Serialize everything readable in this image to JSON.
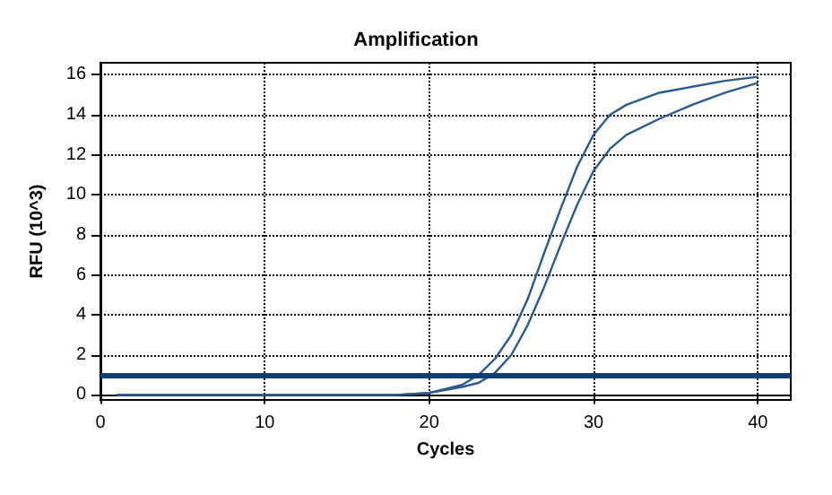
{
  "chart_data": {
    "type": "line",
    "title": "Amplification",
    "xlabel": "Cycles",
    "ylabel": "RFU (10^3)",
    "x": [
      1,
      5,
      10,
      15,
      18,
      20,
      22,
      23,
      24,
      25,
      26,
      27,
      28,
      29,
      30,
      31,
      32,
      34,
      36,
      38,
      40
    ],
    "series": [
      {
        "color": "#2b5a91",
        "values": [
          0,
          0,
          0,
          0,
          0,
          0.1,
          0.5,
          1.0,
          1.8,
          3.0,
          4.8,
          7.1,
          9.3,
          11.4,
          13.0,
          14.0,
          14.5,
          15.1,
          15.4,
          15.7,
          15.9
        ]
      },
      {
        "color": "#2b5a91",
        "values": [
          0,
          0,
          0,
          0,
          0,
          0.1,
          0.4,
          0.6,
          1.1,
          2.0,
          3.5,
          5.4,
          7.5,
          9.5,
          11.2,
          12.3,
          13.0,
          13.8,
          14.5,
          15.1,
          15.6
        ]
      }
    ],
    "ref_lines": [
      {
        "axis": "y",
        "value": 1,
        "color": "#0a3f78"
      }
    ],
    "xlim": [
      0,
      42
    ],
    "xticks": [
      0,
      10,
      20,
      30,
      40
    ],
    "ylim": [
      -0.25,
      16.6
    ],
    "yticks": [
      0,
      2,
      4,
      6,
      8,
      10,
      12,
      14,
      16
    ],
    "grid": true,
    "marker": "none",
    "line_style": "solid"
  }
}
